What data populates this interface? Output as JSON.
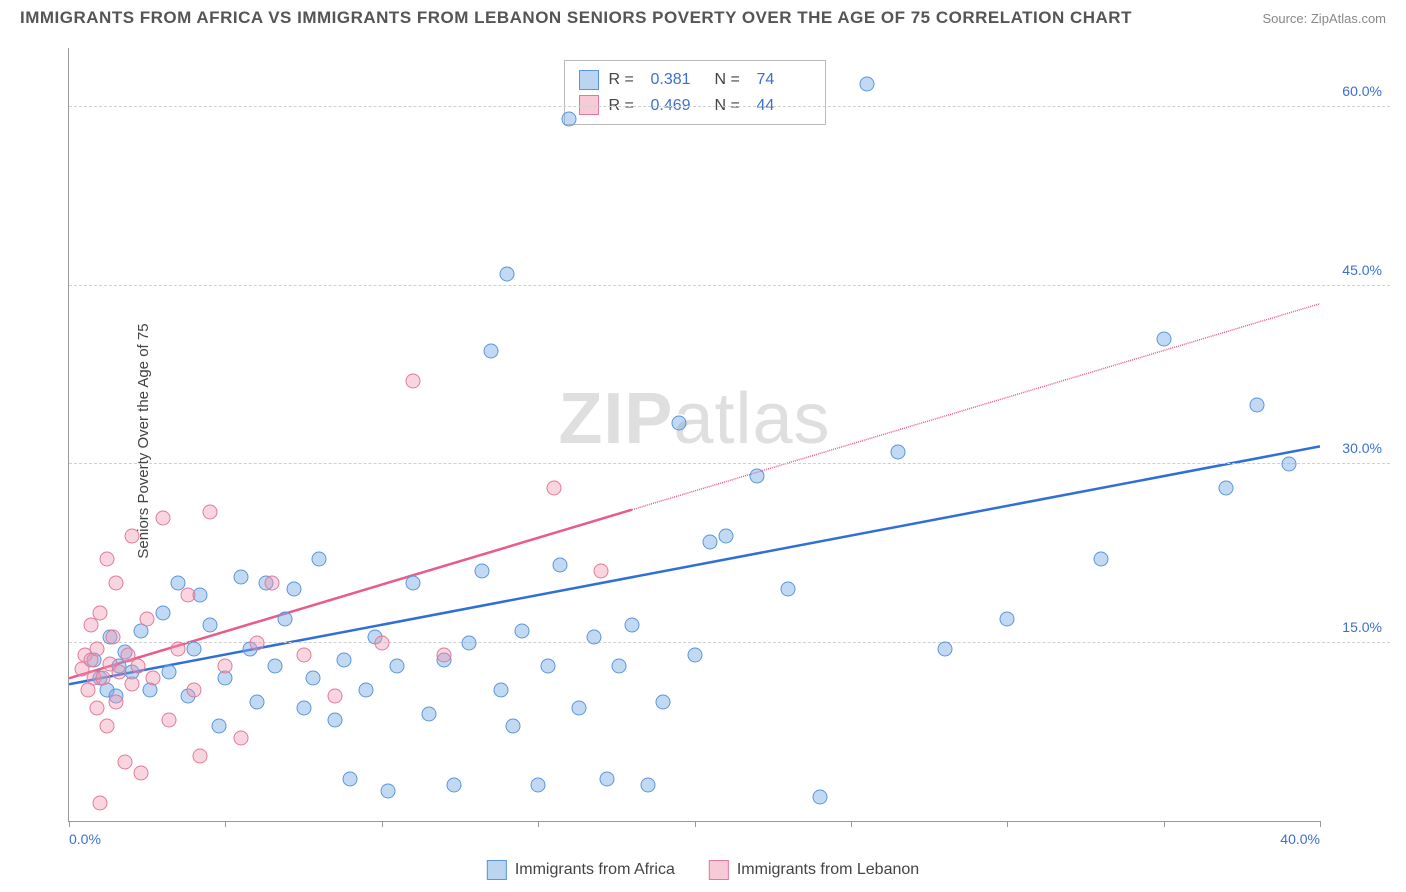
{
  "header": {
    "title": "IMMIGRANTS FROM AFRICA VS IMMIGRANTS FROM LEBANON SENIORS POVERTY OVER THE AGE OF 75 CORRELATION CHART",
    "source": "Source: ZipAtlas.com"
  },
  "chart": {
    "type": "scatter",
    "ylabel": "Seniors Poverty Over the Age of 75",
    "xlim": [
      0,
      40
    ],
    "ylim": [
      0,
      65
    ],
    "yticks": [
      15,
      30,
      45,
      60
    ],
    "ytick_labels": [
      "15.0%",
      "30.0%",
      "45.0%",
      "60.0%"
    ],
    "xticks": [
      0,
      5,
      10,
      15,
      20,
      25,
      30,
      35,
      40
    ],
    "xtick_labels": {
      "0": "0.0%",
      "40": "40.0%"
    },
    "grid_color": "#d0d0d0",
    "watermark": "ZIPatlas",
    "series": [
      {
        "name": "Immigrants from Africa",
        "color_fill": "#78aae6",
        "color_border": "#5a96db",
        "r": 0.381,
        "n": 74,
        "trend": {
          "x1": 0,
          "y1": 11.5,
          "x2": 40,
          "y2": 31.5,
          "solid_to_x": 40,
          "color": "#2f6fd6"
        },
        "points": [
          [
            0.8,
            13.5
          ],
          [
            1.0,
            12.0
          ],
          [
            1.2,
            11.0
          ],
          [
            1.3,
            15.5
          ],
          [
            1.5,
            10.5
          ],
          [
            1.6,
            13.0
          ],
          [
            1.8,
            14.2
          ],
          [
            2.0,
            12.5
          ],
          [
            2.3,
            16.0
          ],
          [
            2.6,
            11.0
          ],
          [
            3.0,
            17.5
          ],
          [
            3.2,
            12.5
          ],
          [
            3.5,
            20.0
          ],
          [
            3.8,
            10.5
          ],
          [
            4.0,
            14.5
          ],
          [
            4.2,
            19.0
          ],
          [
            4.5,
            16.5
          ],
          [
            4.8,
            8.0
          ],
          [
            5.0,
            12.0
          ],
          [
            5.5,
            20.5
          ],
          [
            5.8,
            14.5
          ],
          [
            6.0,
            10.0
          ],
          [
            6.3,
            20.0
          ],
          [
            6.6,
            13.0
          ],
          [
            6.9,
            17.0
          ],
          [
            7.2,
            19.5
          ],
          [
            7.5,
            9.5
          ],
          [
            7.8,
            12.0
          ],
          [
            8.0,
            22.0
          ],
          [
            8.5,
            8.5
          ],
          [
            8.8,
            13.5
          ],
          [
            9.0,
            3.5
          ],
          [
            9.5,
            11.0
          ],
          [
            9.8,
            15.5
          ],
          [
            10.2,
            2.5
          ],
          [
            10.5,
            13.0
          ],
          [
            11.0,
            20.0
          ],
          [
            11.5,
            9.0
          ],
          [
            12.0,
            13.5
          ],
          [
            12.3,
            3.0
          ],
          [
            12.8,
            15.0
          ],
          [
            13.2,
            21.0
          ],
          [
            13.5,
            39.5
          ],
          [
            13.8,
            11.0
          ],
          [
            14.0,
            46.0
          ],
          [
            14.2,
            8.0
          ],
          [
            14.5,
            16.0
          ],
          [
            15.0,
            3.0
          ],
          [
            15.3,
            13.0
          ],
          [
            15.7,
            21.5
          ],
          [
            16.0,
            59.0
          ],
          [
            16.3,
            9.5
          ],
          [
            16.8,
            15.5
          ],
          [
            17.2,
            3.5
          ],
          [
            17.6,
            13.0
          ],
          [
            18.0,
            16.5
          ],
          [
            18.5,
            3.0
          ],
          [
            19.0,
            10.0
          ],
          [
            19.5,
            33.5
          ],
          [
            20.0,
            14.0
          ],
          [
            20.5,
            23.5
          ],
          [
            21.0,
            24.0
          ],
          [
            22.0,
            29.0
          ],
          [
            23.0,
            19.5
          ],
          [
            24.0,
            2.0
          ],
          [
            25.5,
            62.0
          ],
          [
            26.5,
            31.0
          ],
          [
            28.0,
            14.5
          ],
          [
            30.0,
            17.0
          ],
          [
            33.0,
            22.0
          ],
          [
            35.0,
            40.5
          ],
          [
            37.0,
            28.0
          ],
          [
            38.0,
            35.0
          ],
          [
            39.0,
            30.0
          ]
        ]
      },
      {
        "name": "Immigrants from Lebanon",
        "color_fill": "#f096af",
        "color_border": "#e27a9a",
        "r": 0.469,
        "n": 44,
        "trend": {
          "x1": 0,
          "y1": 12.0,
          "x2": 40,
          "y2": 43.5,
          "solid_to_x": 18,
          "color": "#e85b8b"
        },
        "points": [
          [
            0.4,
            12.8
          ],
          [
            0.5,
            14.0
          ],
          [
            0.6,
            11.0
          ],
          [
            0.7,
            13.5
          ],
          [
            0.7,
            16.5
          ],
          [
            0.8,
            12.0
          ],
          [
            0.9,
            9.5
          ],
          [
            0.9,
            14.5
          ],
          [
            1.0,
            17.5
          ],
          [
            1.0,
            1.5
          ],
          [
            1.1,
            12.0
          ],
          [
            1.2,
            22.0
          ],
          [
            1.2,
            8.0
          ],
          [
            1.3,
            13.2
          ],
          [
            1.4,
            15.5
          ],
          [
            1.5,
            10.0
          ],
          [
            1.5,
            20.0
          ],
          [
            1.6,
            12.5
          ],
          [
            1.8,
            5.0
          ],
          [
            1.9,
            14.0
          ],
          [
            2.0,
            24.0
          ],
          [
            2.0,
            11.5
          ],
          [
            2.2,
            13.0
          ],
          [
            2.3,
            4.0
          ],
          [
            2.5,
            17.0
          ],
          [
            2.7,
            12.0
          ],
          [
            3.0,
            25.5
          ],
          [
            3.2,
            8.5
          ],
          [
            3.5,
            14.5
          ],
          [
            3.8,
            19.0
          ],
          [
            4.0,
            11.0
          ],
          [
            4.2,
            5.5
          ],
          [
            4.5,
            26.0
          ],
          [
            5.0,
            13.0
          ],
          [
            5.5,
            7.0
          ],
          [
            6.0,
            15.0
          ],
          [
            6.5,
            20.0
          ],
          [
            7.5,
            14.0
          ],
          [
            8.5,
            10.5
          ],
          [
            10.0,
            15.0
          ],
          [
            11.0,
            37.0
          ],
          [
            12.0,
            14.0
          ],
          [
            15.5,
            28.0
          ],
          [
            17.0,
            21.0
          ]
        ]
      }
    ]
  },
  "legend_top": {
    "rows": [
      {
        "swatch": "blue",
        "r_label": "R =",
        "r_val": "0.381",
        "n_label": "N =",
        "n_val": "74"
      },
      {
        "swatch": "pink",
        "r_label": "R =",
        "r_val": "0.469",
        "n_label": "N =",
        "n_val": "44"
      }
    ]
  },
  "legend_bottom": {
    "items": [
      {
        "swatch": "blue",
        "label": "Immigrants from Africa"
      },
      {
        "swatch": "pink",
        "label": "Immigrants from Lebanon"
      }
    ]
  }
}
